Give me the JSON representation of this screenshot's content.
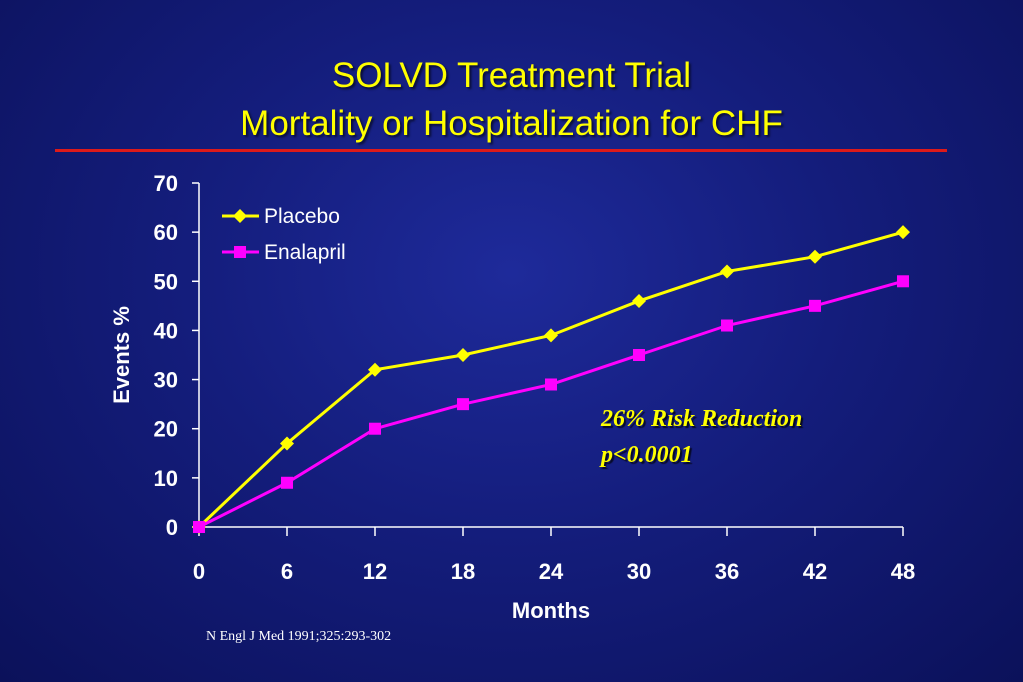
{
  "title_line1": "SOLVD Treatment Trial",
  "title_line2": "Mortality or Hospitalization for CHF",
  "annotation_line1": "26% Risk Reduction",
  "annotation_line2": "p<0.0001",
  "source": "N Engl J Med 1991;325:293-302",
  "colors": {
    "title": "#ffff00",
    "rule": "#dd1a1a",
    "axis": "#ffffff",
    "placebo": "#ffff00",
    "enalapril": "#ff00ff"
  },
  "chart_data": {
    "type": "line",
    "xlabel": "Months",
    "ylabel": "Events %",
    "x": [
      0,
      6,
      12,
      18,
      24,
      30,
      36,
      42,
      48
    ],
    "xlim": [
      0,
      48
    ],
    "ylim": [
      0,
      70
    ],
    "xticks": [
      0,
      6,
      12,
      18,
      24,
      30,
      36,
      42,
      48
    ],
    "yticks": [
      0,
      10,
      20,
      30,
      40,
      50,
      60,
      70
    ],
    "grid": false,
    "legend": "top-left",
    "series": [
      {
        "name": "Placebo",
        "marker": "diamond",
        "color": "#ffff00",
        "values": [
          0,
          17,
          32,
          35,
          39,
          46,
          52,
          55,
          60
        ]
      },
      {
        "name": "Enalapril",
        "marker": "square",
        "color": "#ff00ff",
        "values": [
          0,
          9,
          20,
          25,
          29,
          35,
          41,
          45,
          50
        ]
      }
    ]
  }
}
